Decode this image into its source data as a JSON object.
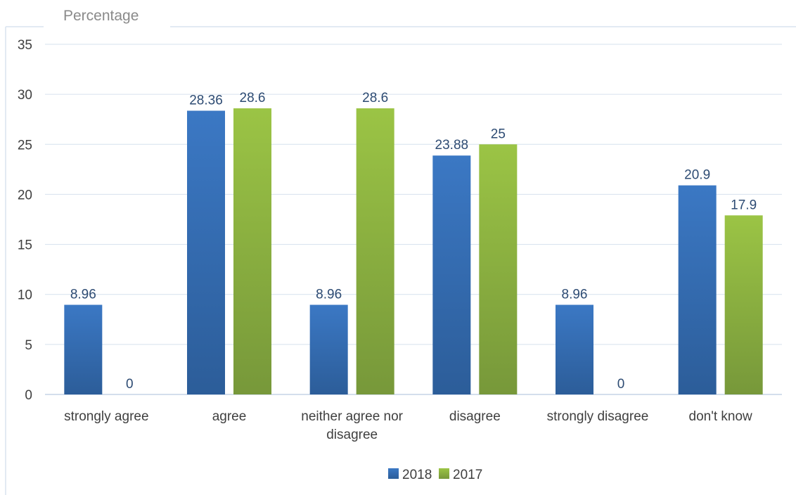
{
  "chart_data": {
    "type": "bar",
    "ylabel": "Percentage",
    "xlabel": "",
    "ylim": [
      0,
      35
    ],
    "yticks": [
      0,
      5,
      10,
      15,
      20,
      25,
      30,
      35
    ],
    "categories": [
      "strongly agree",
      "agree",
      "neither agree nor disagree",
      "disagree",
      "strongly disagree",
      "don't know"
    ],
    "series": [
      {
        "name": "2018",
        "values": [
          8.96,
          28.36,
          8.96,
          23.88,
          8.96,
          20.9
        ],
        "color": "#3b78c4",
        "color_dark": "#2c5d99"
      },
      {
        "name": "2017",
        "values": [
          0,
          28.6,
          28.6,
          25,
          0,
          17.9
        ],
        "color": "#9bc445",
        "color_dark": "#77983a"
      }
    ],
    "grid": true,
    "legend_position": "bottom"
  }
}
